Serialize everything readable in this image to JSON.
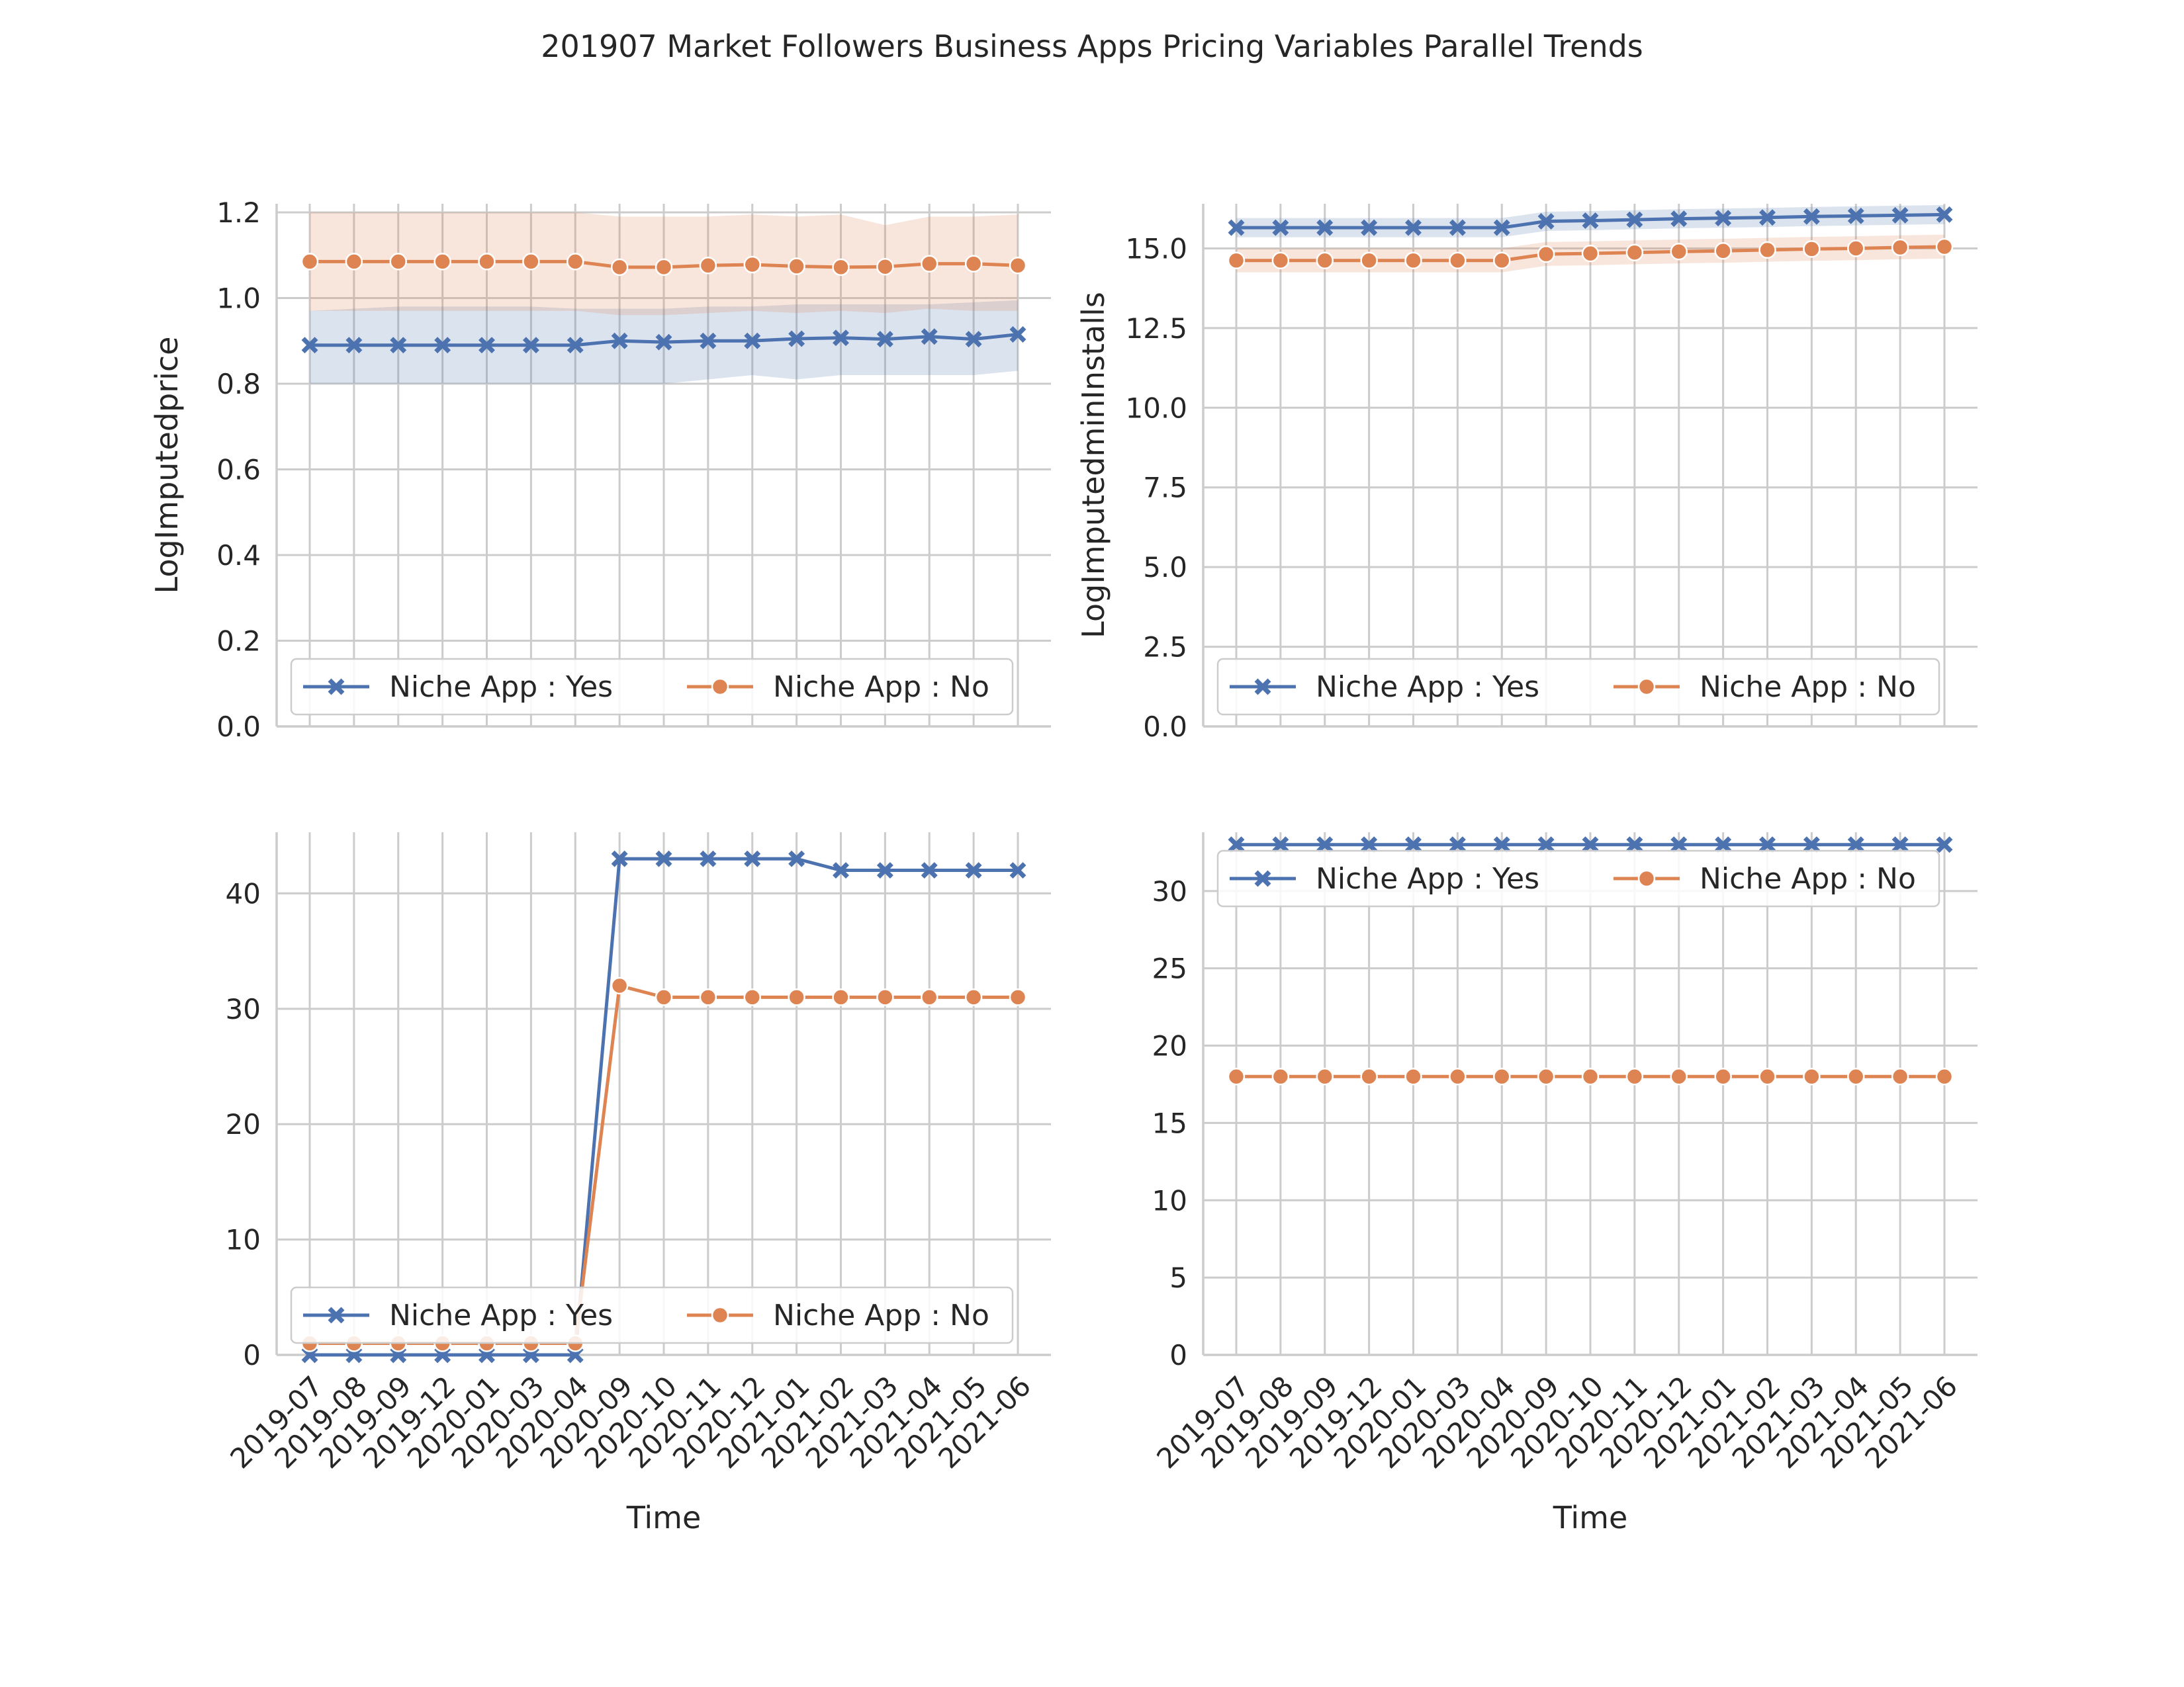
{
  "chart_data": {
    "title": "201907 Market Followers Business Apps Pricing Variables Parallel Trends",
    "type": "line",
    "x": [
      "2019-07",
      "2019-08",
      "2019-09",
      "2019-12",
      "2020-01",
      "2020-03",
      "2020-04",
      "2020-09",
      "2020-10",
      "2020-11",
      "2020-12",
      "2021-01",
      "2021-02",
      "2021-03",
      "2021-04",
      "2021-05",
      "2021-06"
    ],
    "xlabel": "Time",
    "colors": {
      "yes": "#4c72b0",
      "no": "#dd8452"
    },
    "panels": [
      {
        "ylabel": "LogImputedprice",
        "ylim": [
          0,
          1.22
        ],
        "yticks": [
          "0.0",
          "0.2",
          "0.4",
          "0.6",
          "0.8",
          "1.0",
          "1.2"
        ],
        "ytick_values": [
          0,
          0.2,
          0.4,
          0.6,
          0.8,
          1.0,
          1.2
        ],
        "show_xticks": false,
        "legend": "lower",
        "series": [
          {
            "name": "Niche App : Yes",
            "color": "#4c72b0",
            "marker": "x",
            "values": [
              0.89,
              0.89,
              0.89,
              0.89,
              0.89,
              0.89,
              0.89,
              0.9,
              0.897,
              0.9,
              0.9,
              0.905,
              0.907,
              0.904,
              0.91,
              0.904,
              0.915
            ],
            "lower": [
              0.8,
              0.8,
              0.8,
              0.8,
              0.8,
              0.8,
              0.8,
              0.8,
              0.8,
              0.81,
              0.82,
              0.81,
              0.82,
              0.82,
              0.82,
              0.82,
              0.83
            ],
            "upper": [
              0.97,
              0.975,
              0.98,
              0.98,
              0.98,
              0.98,
              0.975,
              0.975,
              0.975,
              0.98,
              0.98,
              0.985,
              0.985,
              0.985,
              0.985,
              0.99,
              0.995
            ]
          },
          {
            "name": "Niche App : No",
            "color": "#dd8452",
            "marker": "o",
            "values": [
              1.085,
              1.085,
              1.085,
              1.085,
              1.085,
              1.085,
              1.085,
              1.072,
              1.072,
              1.076,
              1.078,
              1.074,
              1.072,
              1.073,
              1.08,
              1.08,
              1.076
            ],
            "lower": [
              0.97,
              0.97,
              0.97,
              0.97,
              0.97,
              0.97,
              0.97,
              0.96,
              0.96,
              0.965,
              0.97,
              0.965,
              0.97,
              0.965,
              0.975,
              0.97,
              0.97
            ],
            "upper": [
              1.2,
              1.2,
              1.2,
              1.2,
              1.2,
              1.2,
              1.2,
              1.19,
              1.19,
              1.19,
              1.195,
              1.19,
              1.195,
              1.17,
              1.19,
              1.19,
              1.195
            ]
          }
        ]
      },
      {
        "ylabel": "LogImputedminInstalls",
        "ylim": [
          0,
          16.4
        ],
        "yticks": [
          "0.0",
          "2.5",
          "5.0",
          "7.5",
          "10.0",
          "12.5",
          "15.0"
        ],
        "ytick_values": [
          0,
          2.5,
          5.0,
          7.5,
          10.0,
          12.5,
          15.0
        ],
        "show_xticks": false,
        "legend": "lower",
        "series": [
          {
            "name": "Niche App : Yes",
            "color": "#4c72b0",
            "marker": "x",
            "values": [
              15.65,
              15.65,
              15.65,
              15.65,
              15.65,
              15.65,
              15.65,
              15.85,
              15.87,
              15.9,
              15.93,
              15.95,
              15.97,
              16.0,
              16.02,
              16.04,
              16.06
            ],
            "lower": [
              15.35,
              15.35,
              15.35,
              15.35,
              15.35,
              15.35,
              15.35,
              15.55,
              15.57,
              15.6,
              15.63,
              15.65,
              15.67,
              15.7,
              15.72,
              15.74,
              15.76
            ],
            "upper": [
              15.95,
              15.95,
              15.95,
              15.95,
              15.95,
              15.95,
              15.95,
              16.15,
              16.17,
              16.2,
              16.23,
              16.25,
              16.27,
              16.3,
              16.32,
              16.34,
              16.36
            ]
          },
          {
            "name": "Niche App : No",
            "color": "#dd8452",
            "marker": "o",
            "values": [
              14.62,
              14.62,
              14.62,
              14.62,
              14.62,
              14.62,
              14.62,
              14.82,
              14.84,
              14.87,
              14.9,
              14.92,
              14.95,
              14.98,
              15.0,
              15.03,
              15.05
            ],
            "lower": [
              14.25,
              14.25,
              14.25,
              14.25,
              14.25,
              14.25,
              14.25,
              14.45,
              14.47,
              14.5,
              14.53,
              14.55,
              14.58,
              14.61,
              14.63,
              14.66,
              14.68
            ],
            "upper": [
              15.0,
              15.0,
              15.0,
              15.0,
              15.0,
              15.0,
              15.0,
              15.2,
              15.22,
              15.25,
              15.28,
              15.3,
              15.33,
              15.36,
              15.38,
              15.41,
              15.43
            ]
          }
        ]
      },
      {
        "ylabel": "",
        "ylim": [
          0,
          45.3
        ],
        "yticks": [
          "0",
          "10",
          "20",
          "30",
          "40"
        ],
        "ytick_values": [
          0,
          10,
          20,
          30,
          40
        ],
        "show_xticks": true,
        "legend": "lower",
        "series": [
          {
            "name": "Niche App : Yes",
            "color": "#4c72b0",
            "marker": "x",
            "values": [
              0,
              0,
              0,
              0,
              0,
              0,
              0,
              43,
              43,
              43,
              43,
              43,
              42,
              42,
              42,
              42,
              42
            ]
          },
          {
            "name": "Niche App : No",
            "color": "#dd8452",
            "marker": "o",
            "values": [
              1,
              1,
              1,
              1,
              1,
              1,
              1,
              32,
              31,
              31,
              31,
              31,
              31,
              31,
              31,
              31,
              31
            ]
          }
        ]
      },
      {
        "ylabel": "",
        "ylim": [
          0,
          33.8
        ],
        "yticks": [
          "0",
          "5",
          "10",
          "15",
          "20",
          "25",
          "30"
        ],
        "ytick_values": [
          0,
          5,
          10,
          15,
          20,
          25,
          30
        ],
        "show_xticks": true,
        "legend": "upper",
        "series": [
          {
            "name": "Niche App : Yes",
            "color": "#4c72b0",
            "marker": "x",
            "values": [
              33,
              33,
              33,
              33,
              33,
              33,
              33,
              33,
              33,
              33,
              33,
              33,
              33,
              33,
              33,
              33,
              33
            ]
          },
          {
            "name": "Niche App : No",
            "color": "#dd8452",
            "marker": "o",
            "values": [
              18,
              18,
              18,
              18,
              18,
              18,
              18,
              18,
              18,
              18,
              18,
              18,
              18,
              18,
              18,
              18,
              18
            ]
          }
        ]
      }
    ]
  }
}
